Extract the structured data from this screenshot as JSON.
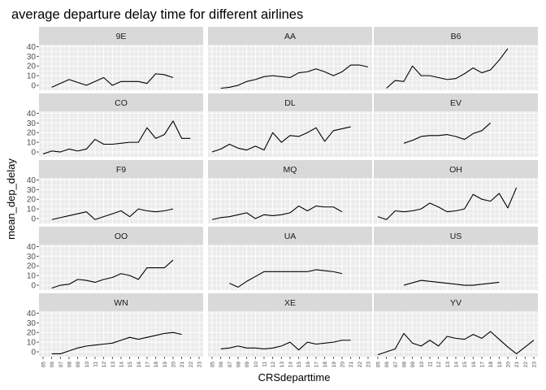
{
  "chart_data": {
    "type": "line",
    "title": "average departure delay time for different airlines",
    "xlabel": "CRSdeparttime",
    "ylabel": "mean_dep_delay",
    "x_ticks": [
      "05",
      "06",
      "07",
      "08",
      "09",
      "10",
      "11",
      "12",
      "13",
      "14",
      "15",
      "16",
      "17",
      "18",
      "19",
      "20",
      "21",
      "22",
      "23"
    ],
    "y_ticks": [
      0,
      10,
      20,
      30,
      40
    ],
    "ylim": [
      -5,
      42
    ],
    "grid": true,
    "layout": "facet_wrap 5 rows x 3 columns",
    "colors": {
      "panel_bg": "#ebebeb",
      "strip_bg": "#d9d9d9",
      "grid": "#ffffff",
      "line": "#000000"
    },
    "panels": [
      {
        "name": "9E",
        "x": [
          "06",
          "08",
          "10",
          "12",
          "13",
          "14",
          "16",
          "17",
          "18",
          "19",
          "20"
        ],
        "y": [
          -2,
          6,
          0,
          8,
          0,
          4,
          4,
          2,
          12,
          11,
          8
        ]
      },
      {
        "name": "AA",
        "x": [
          "06",
          "07",
          "08",
          "09",
          "10",
          "11",
          "12",
          "13",
          "14",
          "15",
          "16",
          "17",
          "18",
          "19",
          "20",
          "21",
          "22",
          "23"
        ],
        "y": [
          -3,
          -2,
          0,
          4,
          6,
          9,
          10,
          9,
          8,
          13,
          14,
          17,
          14,
          10,
          14,
          21,
          21,
          19
        ]
      },
      {
        "name": "B6",
        "x": [
          "06",
          "07",
          "08",
          "09",
          "10",
          "11",
          "12",
          "13",
          "14",
          "15",
          "16",
          "17",
          "18",
          "19",
          "20"
        ],
        "y": [
          -3,
          5,
          4,
          20,
          10,
          10,
          8,
          6,
          7,
          12,
          18,
          13,
          16,
          26,
          38
        ]
      },
      {
        "name": "CO",
        "x": [
          "05",
          "06",
          "07",
          "08",
          "09",
          "10",
          "11",
          "12",
          "13",
          "14",
          "15",
          "16",
          "17",
          "18",
          "19",
          "20",
          "21",
          "22"
        ],
        "y": [
          -2,
          1,
          0,
          3,
          1,
          3,
          13,
          8,
          8,
          9,
          10,
          10,
          25,
          14,
          18,
          32,
          14,
          14
        ]
      },
      {
        "name": "DL",
        "x": [
          "05",
          "06",
          "07",
          "08",
          "09",
          "10",
          "11",
          "12",
          "13",
          "14",
          "15",
          "16",
          "17",
          "18",
          "19",
          "20",
          "21"
        ],
        "y": [
          0,
          3,
          8,
          4,
          2,
          6,
          2,
          20,
          10,
          17,
          16,
          20,
          25,
          11,
          22,
          24,
          26
        ]
      },
      {
        "name": "EV",
        "x": [
          "08",
          "09",
          "10",
          "11",
          "12",
          "13",
          "14",
          "15",
          "16",
          "17",
          "18"
        ],
        "y": [
          9,
          12,
          16,
          17,
          17,
          18,
          16,
          13,
          19,
          22,
          30
        ]
      },
      {
        "name": "F9",
        "x": [
          "06",
          "07",
          "08",
          "09",
          "10",
          "11",
          "12",
          "13",
          "14",
          "15",
          "16",
          "17",
          "18",
          "19",
          "20"
        ],
        "y": [
          -1,
          1,
          3,
          5,
          7,
          -1,
          2,
          5,
          8,
          2,
          10,
          8,
          7,
          8,
          10
        ]
      },
      {
        "name": "MQ",
        "x": [
          "05",
          "06",
          "07",
          "08",
          "09",
          "10",
          "11",
          "12",
          "13",
          "14",
          "15",
          "16",
          "17",
          "18",
          "19",
          "20"
        ],
        "y": [
          -1,
          1,
          2,
          4,
          6,
          0,
          4,
          3,
          4,
          6,
          13,
          8,
          13,
          12,
          12,
          7
        ]
      },
      {
        "name": "OH",
        "x": [
          "05",
          "06",
          "07",
          "08",
          "09",
          "10",
          "11",
          "12",
          "13",
          "14",
          "15",
          "16",
          "17",
          "18",
          "19",
          "20",
          "21"
        ],
        "y": [
          2,
          -1,
          8,
          7,
          8,
          10,
          16,
          12,
          7,
          8,
          10,
          25,
          20,
          18,
          26,
          11,
          32
        ]
      },
      {
        "name": "OO",
        "x": [
          "06",
          "07",
          "08",
          "09",
          "10",
          "11",
          "12",
          "13",
          "14",
          "15",
          "16",
          "17",
          "18",
          "19",
          "20"
        ],
        "y": [
          -3,
          0,
          1,
          6,
          5,
          3,
          6,
          8,
          12,
          10,
          6,
          18,
          18,
          18,
          26
        ]
      },
      {
        "name": "UA",
        "x": [
          "07",
          "08",
          "09",
          "10",
          "11",
          "12",
          "13",
          "14",
          "15",
          "16",
          "17",
          "18",
          "19",
          "20"
        ],
        "y": [
          2,
          -2,
          4,
          9,
          14,
          14,
          14,
          14,
          14,
          14,
          16,
          15,
          14,
          12
        ]
      },
      {
        "name": "US",
        "x": [
          "08",
          "10",
          "12",
          "14",
          "15",
          "16",
          "17",
          "18",
          "19"
        ],
        "y": [
          0,
          5,
          3,
          1,
          0,
          0,
          1,
          2,
          3
        ]
      },
      {
        "name": "WN",
        "x": [
          "06",
          "07",
          "08",
          "09",
          "10",
          "11",
          "12",
          "13",
          "14",
          "15",
          "16",
          "17",
          "18",
          "19",
          "20",
          "21"
        ],
        "y": [
          -2,
          -2,
          1,
          4,
          6,
          7,
          8,
          9,
          12,
          15,
          13,
          15,
          17,
          19,
          20,
          18
        ]
      },
      {
        "name": "XE",
        "x": [
          "06",
          "07",
          "08",
          "09",
          "10",
          "11",
          "12",
          "13",
          "14",
          "15",
          "16",
          "17",
          "18",
          "19",
          "20",
          "21"
        ],
        "y": [
          3,
          4,
          6,
          4,
          4,
          3,
          4,
          6,
          10,
          2,
          10,
          8,
          9,
          10,
          12,
          12
        ]
      },
      {
        "name": "YV",
        "x": [
          "05",
          "06",
          "07",
          "08",
          "09",
          "10",
          "11",
          "12",
          "13",
          "14",
          "15",
          "16",
          "17",
          "18",
          "19",
          "20",
          "21",
          "22",
          "23"
        ],
        "y": [
          -3,
          0,
          3,
          19,
          9,
          6,
          12,
          6,
          16,
          14,
          13,
          18,
          14,
          21,
          13,
          5,
          -2,
          5,
          12
        ]
      }
    ]
  }
}
